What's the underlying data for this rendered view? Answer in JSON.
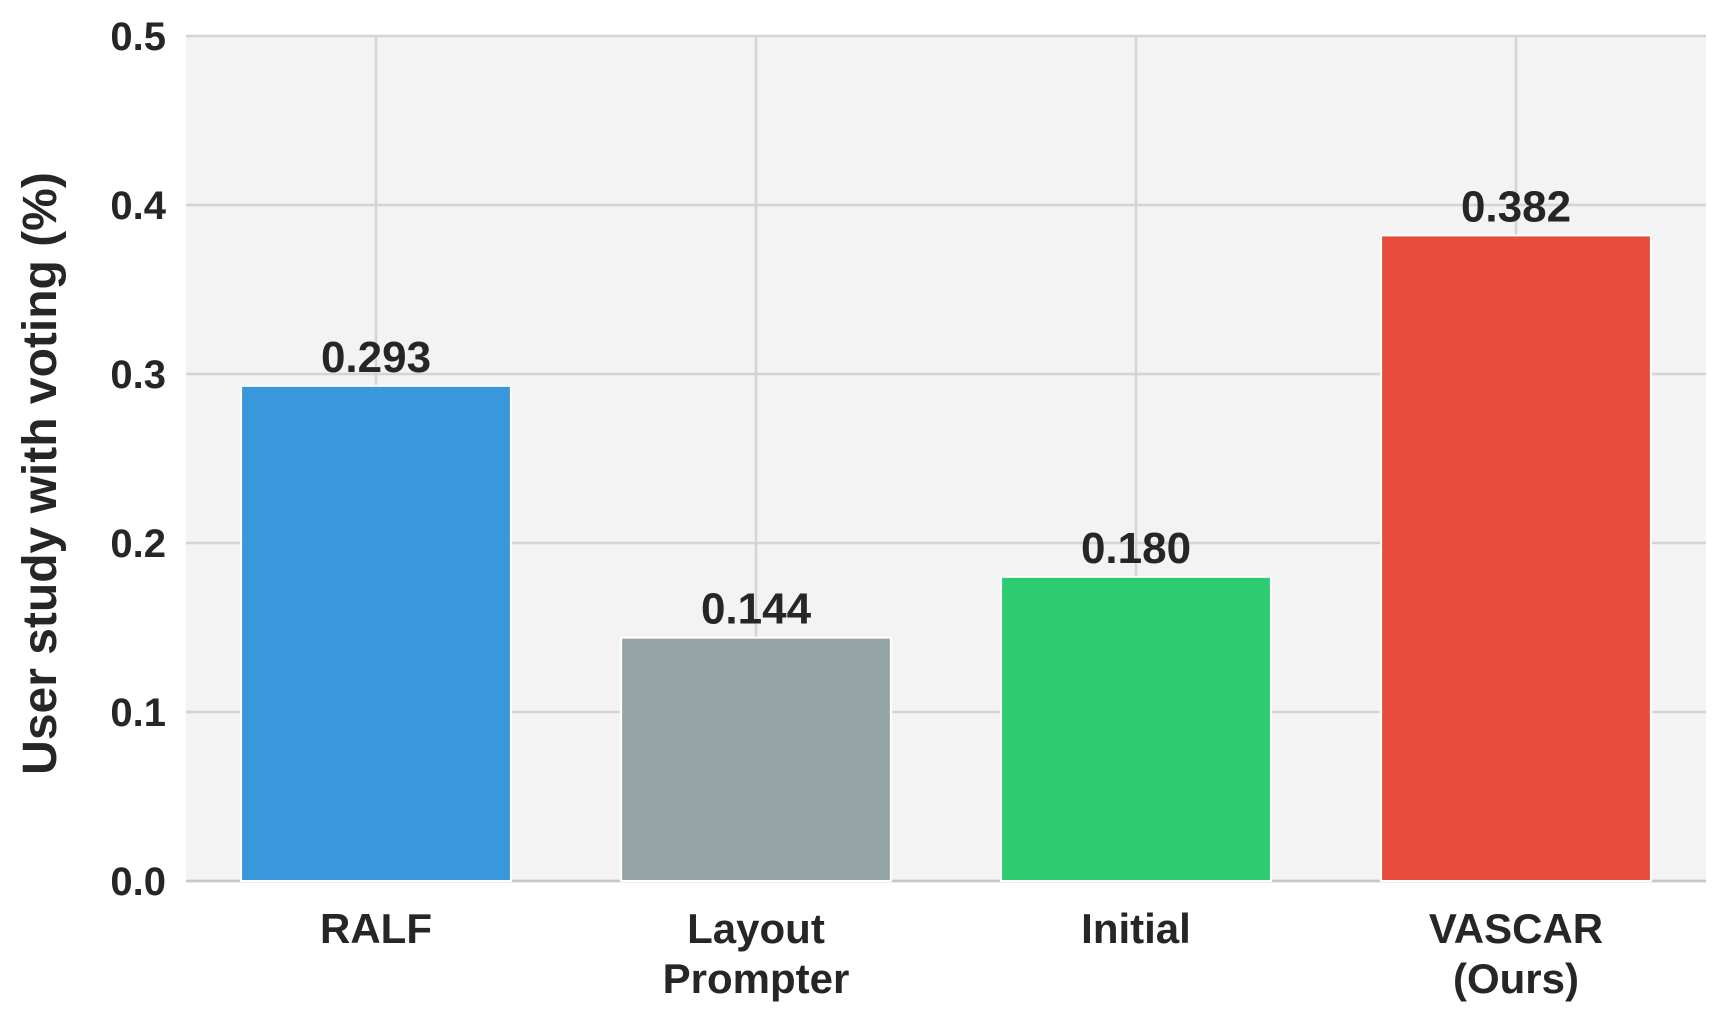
{
  "chart_data": {
    "type": "bar",
    "title": "",
    "xlabel": "",
    "ylabel": "User study with voting (%)",
    "ylim": [
      0,
      0.5
    ],
    "yticks": [
      "0.0",
      "0.1",
      "0.2",
      "0.3",
      "0.4",
      "0.5"
    ],
    "grid": true,
    "categories": [
      [
        "RALF"
      ],
      [
        "Layout",
        "Prompter"
      ],
      [
        "Initial"
      ],
      [
        "VASCAR",
        "(Ours)"
      ]
    ],
    "values": [
      0.293,
      0.144,
      0.18,
      0.382
    ],
    "value_labels": [
      "0.293",
      "0.144",
      "0.180",
      "0.382"
    ],
    "colors": [
      "#3998db",
      "#95a5a5",
      "#2ecc71",
      "#e74c3c"
    ]
  },
  "style": {
    "plot_background": "#f3f3f3",
    "grid_color": "#d4d4d4",
    "text_color": "#262626"
  }
}
